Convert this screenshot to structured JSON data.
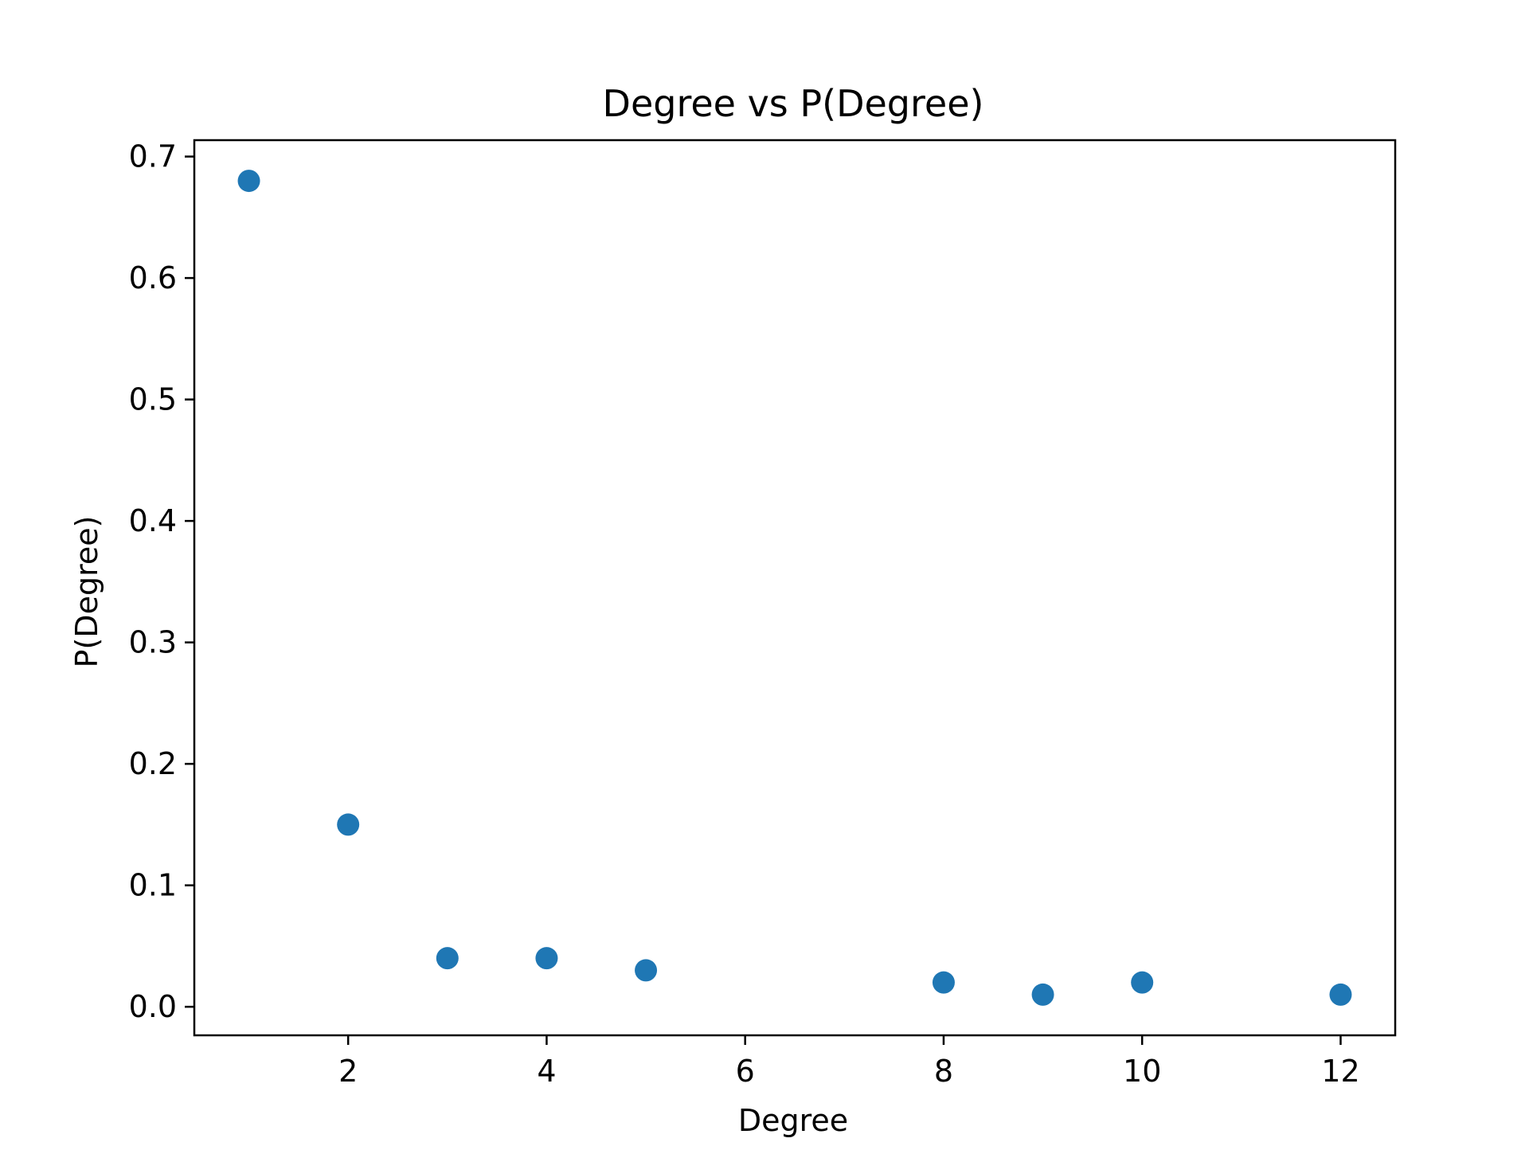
{
  "chart_data": {
    "type": "scatter",
    "title": "Degree vs P(Degree)",
    "xlabel": "Degree",
    "ylabel": "P(Degree)",
    "x": [
      1,
      2,
      3,
      4,
      5,
      8,
      9,
      10,
      12
    ],
    "y": [
      0.68,
      0.15,
      0.04,
      0.04,
      0.03,
      0.02,
      0.01,
      0.02,
      0.01
    ],
    "xlim": [
      0.45,
      12.55
    ],
    "ylim": [
      -0.0235,
      0.7135
    ],
    "xticks": [
      2,
      4,
      6,
      8,
      10,
      12
    ],
    "xtick_labels": [
      "2",
      "4",
      "6",
      "8",
      "10",
      "12"
    ],
    "yticks": [
      0.0,
      0.1,
      0.2,
      0.3,
      0.4,
      0.5,
      0.6,
      0.7
    ],
    "ytick_labels": [
      "0.0",
      "0.1",
      "0.2",
      "0.3",
      "0.4",
      "0.5",
      "0.6",
      "0.7"
    ],
    "grid": false,
    "legend": "none",
    "marker_color": "#1f77b4"
  }
}
